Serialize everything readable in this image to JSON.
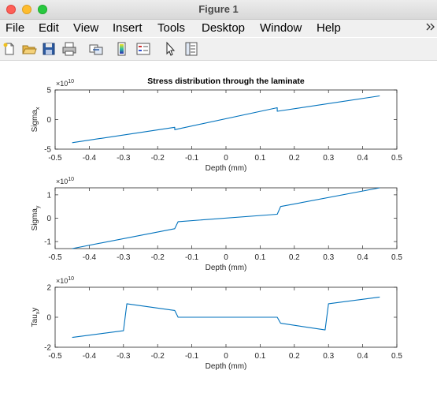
{
  "window": {
    "title": "Figure 1"
  },
  "menu": [
    "File",
    "Edit",
    "View",
    "Insert",
    "Tools",
    "Desktop",
    "Window",
    "Help"
  ],
  "toolbar": {
    "icons": [
      "new-figure-icon",
      "open-file-icon",
      "save-icon",
      "print-icon",
      "link-plot-icon",
      "insert-colorbar-icon",
      "insert-legend-icon",
      "pointer-icon",
      "property-inspector-icon"
    ]
  },
  "figure": {
    "title": "Stress distribution through the laminate"
  },
  "colors": {
    "line": "#0072bd",
    "axes": "#262626"
  },
  "chart_data": [
    {
      "type": "line",
      "title": "Stress distribution through the laminate",
      "xlabel": "Depth (mm)",
      "ylabel_main": "Sigma",
      "ylabel_sub": "x",
      "exponent_base": "×10",
      "exponent_power": "10",
      "xlim": [
        -0.5,
        0.5
      ],
      "ylim": [
        -5,
        5
      ],
      "xticks": [
        -0.5,
        -0.4,
        -0.3,
        -0.2,
        -0.1,
        0,
        0.1,
        0.2,
        0.3,
        0.4,
        0.5
      ],
      "xticklabels": [
        "-0.5",
        "-0.4",
        "-0.3",
        "-0.2",
        "-0.1",
        "0",
        "0.1",
        "0.2",
        "0.3",
        "0.4",
        "0.5"
      ],
      "yticks": [
        -5,
        0,
        5
      ],
      "yticklabels": [
        "-5",
        "0",
        "5"
      ],
      "series": [
        {
          "x": [
            -0.45,
            -0.15,
            -0.15,
            0.15,
            0.15,
            0.45
          ],
          "y": [
            -3.9,
            -1.3,
            -1.7,
            2.0,
            1.4,
            4.0
          ]
        }
      ]
    },
    {
      "type": "line",
      "title": "",
      "xlabel": "Depth (mm)",
      "ylabel_main": "Sigma",
      "ylabel_sub": "y",
      "exponent_base": "×10",
      "exponent_power": "10",
      "xlim": [
        -0.5,
        0.5
      ],
      "ylim": [
        -1.3,
        1.3
      ],
      "xticks": [
        -0.5,
        -0.4,
        -0.3,
        -0.2,
        -0.1,
        0,
        0.1,
        0.2,
        0.3,
        0.4,
        0.5
      ],
      "xticklabels": [
        "-0.5",
        "-0.4",
        "-0.3",
        "-0.2",
        "-0.1",
        "0",
        "0.1",
        "0.2",
        "0.3",
        "0.4",
        "0.5"
      ],
      "yticks": [
        -1,
        0,
        1
      ],
      "yticklabels": [
        "-1",
        "0",
        "1"
      ],
      "series": [
        {
          "x": [
            -0.45,
            -0.15,
            -0.14,
            0.15,
            0.16,
            0.45
          ],
          "y": [
            -1.3,
            -0.45,
            -0.15,
            0.17,
            0.5,
            1.3
          ]
        }
      ]
    },
    {
      "type": "line",
      "title": "",
      "xlabel": "Depth (mm)",
      "ylabel_main": "Tau",
      "ylabel_sub": "x",
      "ylabel_tail": "y",
      "exponent_base": "×10",
      "exponent_power": "10",
      "xlim": [
        -0.5,
        0.5
      ],
      "ylim": [
        -2,
        2
      ],
      "xticks": [
        -0.5,
        -0.4,
        -0.3,
        -0.2,
        -0.1,
        0,
        0.1,
        0.2,
        0.3,
        0.4,
        0.5
      ],
      "xticklabels": [
        "-0.5",
        "-0.4",
        "-0.3",
        "-0.2",
        "-0.1",
        "0",
        "0.1",
        "0.2",
        "0.3",
        "0.4",
        "0.5"
      ],
      "yticks": [
        -2,
        0,
        2
      ],
      "yticklabels": [
        "-2",
        "0",
        "2"
      ],
      "series": [
        {
          "x": [
            -0.45,
            -0.3,
            -0.29,
            -0.15,
            -0.14,
            0.15,
            0.16,
            0.29,
            0.3,
            0.45
          ],
          "y": [
            -1.35,
            -0.9,
            0.9,
            0.45,
            0.0,
            0.0,
            -0.4,
            -0.85,
            0.9,
            1.35
          ]
        }
      ]
    }
  ]
}
